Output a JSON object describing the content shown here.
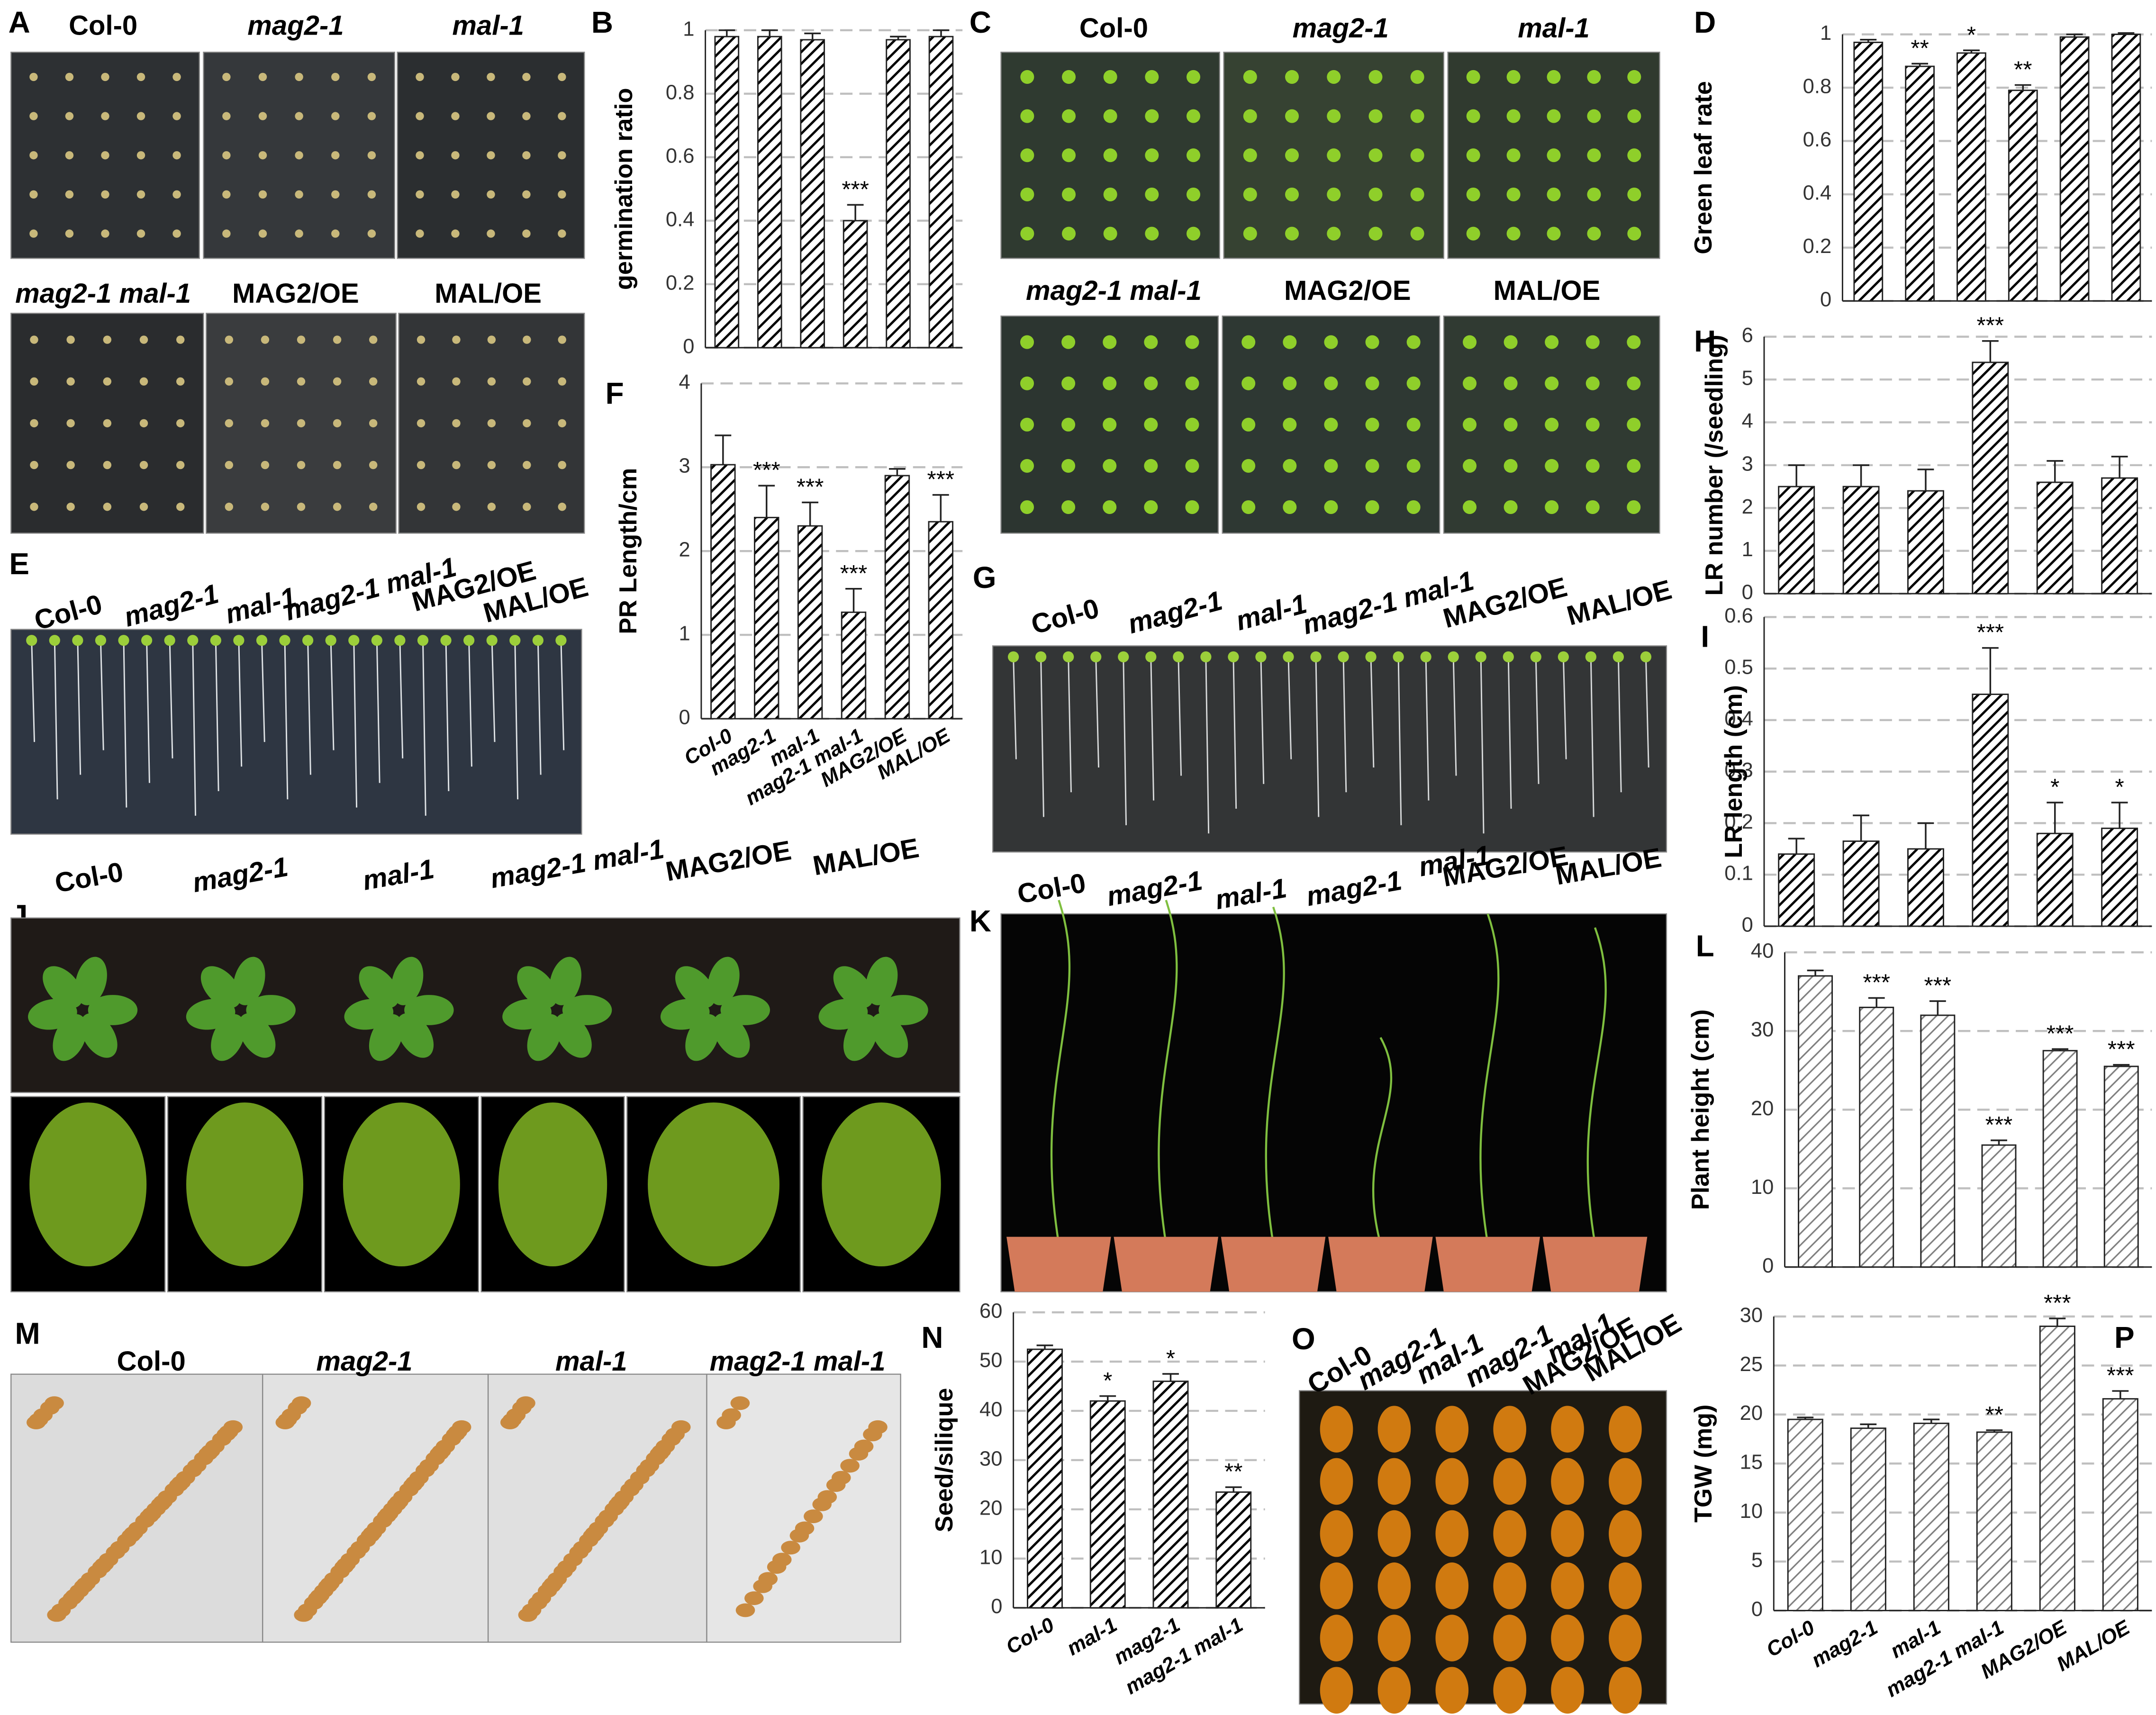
{
  "chart_data": [
    {
      "type": "bar",
      "panel": "B",
      "y_label": "germination ratio",
      "categories": [
        null,
        null,
        null,
        null,
        null,
        null
      ],
      "values": [
        0.98,
        0.98,
        0.97,
        0.4,
        0.97,
        0.98
      ],
      "errors": [
        0.02,
        0.02,
        0.02,
        0.05,
        0.01,
        0.02
      ],
      "annotations": [
        null,
        null,
        null,
        "***",
        null,
        null
      ],
      "color": "#000000",
      "ylim": [
        0,
        1
      ],
      "yticks": [
        0,
        0.2,
        0.4,
        0.6,
        0.8,
        1
      ],
      "grid": true
    },
    {
      "type": "bar",
      "panel": "D",
      "y_label": "Green leaf rate",
      "categories": [
        null,
        null,
        null,
        null,
        null,
        null
      ],
      "values": [
        0.97,
        0.88,
        0.93,
        0.79,
        0.99,
        1.0
      ],
      "errors": [
        0.01,
        0.01,
        0.01,
        0.02,
        0.01,
        0.005
      ],
      "annotations": [
        null,
        "**",
        "*",
        "**",
        null,
        null
      ],
      "color": "#000000",
      "ylim": [
        0,
        1
      ],
      "yticks": [
        0,
        0.2,
        0.4,
        0.6,
        0.8,
        1
      ],
      "grid": true
    },
    {
      "type": "bar",
      "panel": "F",
      "y_label": "PR Length/cm",
      "categories": [
        "Col-0",
        "mag2-1",
        "mal-1",
        "mag2-1 mal-1",
        "MAG2/OE",
        "MAL/OE"
      ],
      "values": [
        3.03,
        2.4,
        2.3,
        1.27,
        2.9,
        2.35
      ],
      "errors": [
        0.35,
        0.38,
        0.28,
        0.28,
        0.08,
        0.32
      ],
      "annotations": [
        null,
        "***",
        "***",
        "***",
        null,
        "***"
      ],
      "color": "#000000",
      "ylim": [
        0,
        4
      ],
      "yticks": [
        0,
        1,
        2,
        3,
        4
      ],
      "grid": true
    },
    {
      "type": "bar",
      "panel": "H",
      "y_label": "LR number (/seedling)",
      "categories": [
        null,
        null,
        null,
        null,
        null,
        null
      ],
      "values": [
        2.5,
        2.5,
        2.4,
        5.4,
        2.6,
        2.7
      ],
      "errors": [
        0.5,
        0.5,
        0.5,
        0.5,
        0.5,
        0.5
      ],
      "annotations": [
        null,
        null,
        null,
        "***",
        null,
        null
      ],
      "color": "#000000",
      "ylim": [
        0,
        6
      ],
      "yticks": [
        0,
        1,
        2,
        3,
        4,
        5,
        6
      ],
      "grid": true
    },
    {
      "type": "bar",
      "panel": "I",
      "y_label": "LR length (cm)",
      "categories": [
        null,
        null,
        null,
        null,
        null,
        null
      ],
      "values": [
        0.14,
        0.165,
        0.15,
        0.45,
        0.18,
        0.19
      ],
      "errors": [
        0.03,
        0.05,
        0.05,
        0.09,
        0.06,
        0.05
      ],
      "annotations": [
        null,
        null,
        null,
        "***",
        "*",
        "*"
      ],
      "color": "#000000",
      "ylim": [
        0,
        0.6
      ],
      "yticks": [
        0,
        0.1,
        0.2,
        0.3,
        0.4,
        0.5,
        0.6
      ],
      "grid": true
    },
    {
      "type": "bar",
      "panel": "L",
      "y_label": "Plant height (cm)",
      "categories": [
        null,
        null,
        null,
        null,
        null,
        null
      ],
      "values": [
        37,
        33,
        32,
        15.5,
        27.5,
        25.5
      ],
      "errors": [
        0.7,
        1.2,
        1.8,
        0.6,
        0.2,
        0.2
      ],
      "annotations": [
        null,
        "***",
        "***",
        "***",
        "***",
        "***"
      ],
      "color": "#7f7f7f",
      "ylim": [
        0,
        40
      ],
      "yticks": [
        0,
        10,
        20,
        30,
        40
      ],
      "grid": true
    },
    {
      "type": "bar",
      "panel": "N",
      "y_label": "Seed/silique",
      "categories": [
        "Col-0",
        "mal-1",
        "mag2-1",
        "mag2-1 mal-1"
      ],
      "values": [
        52.5,
        42,
        46,
        23.5
      ],
      "errors": [
        0.8,
        1,
        1.5,
        1
      ],
      "annotations": [
        null,
        "*",
        "*",
        "**"
      ],
      "color": "#000000",
      "ylim": [
        0,
        60
      ],
      "yticks": [
        0,
        10,
        20,
        30,
        40,
        50,
        60
      ],
      "grid": true
    },
    {
      "type": "bar",
      "panel": "P",
      "y_label": "TGW (mg)",
      "categories": [
        "Col-0",
        "mag2-1",
        "mal-1",
        "mag2-1 mal-1",
        "MAG2/OE",
        "MAL/OE"
      ],
      "values": [
        19.5,
        18.6,
        19.1,
        18.2,
        29,
        21.6
      ],
      "errors": [
        0.2,
        0.4,
        0.4,
        0.2,
        0.8,
        0.8
      ],
      "annotations": [
        null,
        null,
        null,
        "**",
        "***",
        "***"
      ],
      "color": "#7f7f7f",
      "ylim": [
        0,
        30
      ],
      "yticks": [
        0,
        5,
        10,
        15,
        20,
        25,
        30
      ],
      "grid": true
    }
  ],
  "photo_panels": [
    {
      "panel": "A",
      "labels": [
        "Col-0",
        "mag2-1",
        "mal-1",
        "mag2-1 mal-1",
        "MAG2/OE",
        "MAL/OE"
      ]
    },
    {
      "panel": "C",
      "labels": [
        "Col-0",
        "mag2-1",
        "mal-1",
        "mag2-1 mal-1",
        "MAG2/OE",
        "MAL/OE"
      ]
    },
    {
      "panel": "E",
      "labels": [
        "Col-0",
        "mag2-1",
        "mal-1",
        "mag2-1 mal-1",
        "MAG2/OE",
        "MAL/OE"
      ]
    },
    {
      "panel": "G",
      "labels": [
        "Col-0",
        "mag2-1",
        "mal-1",
        "mag2-1 mal-1",
        "MAG2/OE",
        "MAL/OE"
      ]
    },
    {
      "panel": "J",
      "labels": [
        "Col-0",
        "mag2-1",
        "mal-1",
        "mag2-1 mal-1",
        "MAG2/OE",
        "MAL/OE"
      ]
    },
    {
      "panel": "K",
      "labels": [
        "Col-0",
        "mag2-1",
        "mal-1",
        "mag2-1",
        "mal-1",
        "MAG2/OE",
        "MAL/OE"
      ]
    },
    {
      "panel": "M",
      "labels": [
        "Col-0",
        "mag2-1",
        "mal-1",
        "mag2-1 mal-1"
      ]
    },
    {
      "panel": "O",
      "labels": [
        "Col-0",
        "mag2-1",
        "mal-1",
        "mag2-1",
        "mal-1",
        "MAG2/OE",
        "MAL/OE"
      ]
    }
  ]
}
